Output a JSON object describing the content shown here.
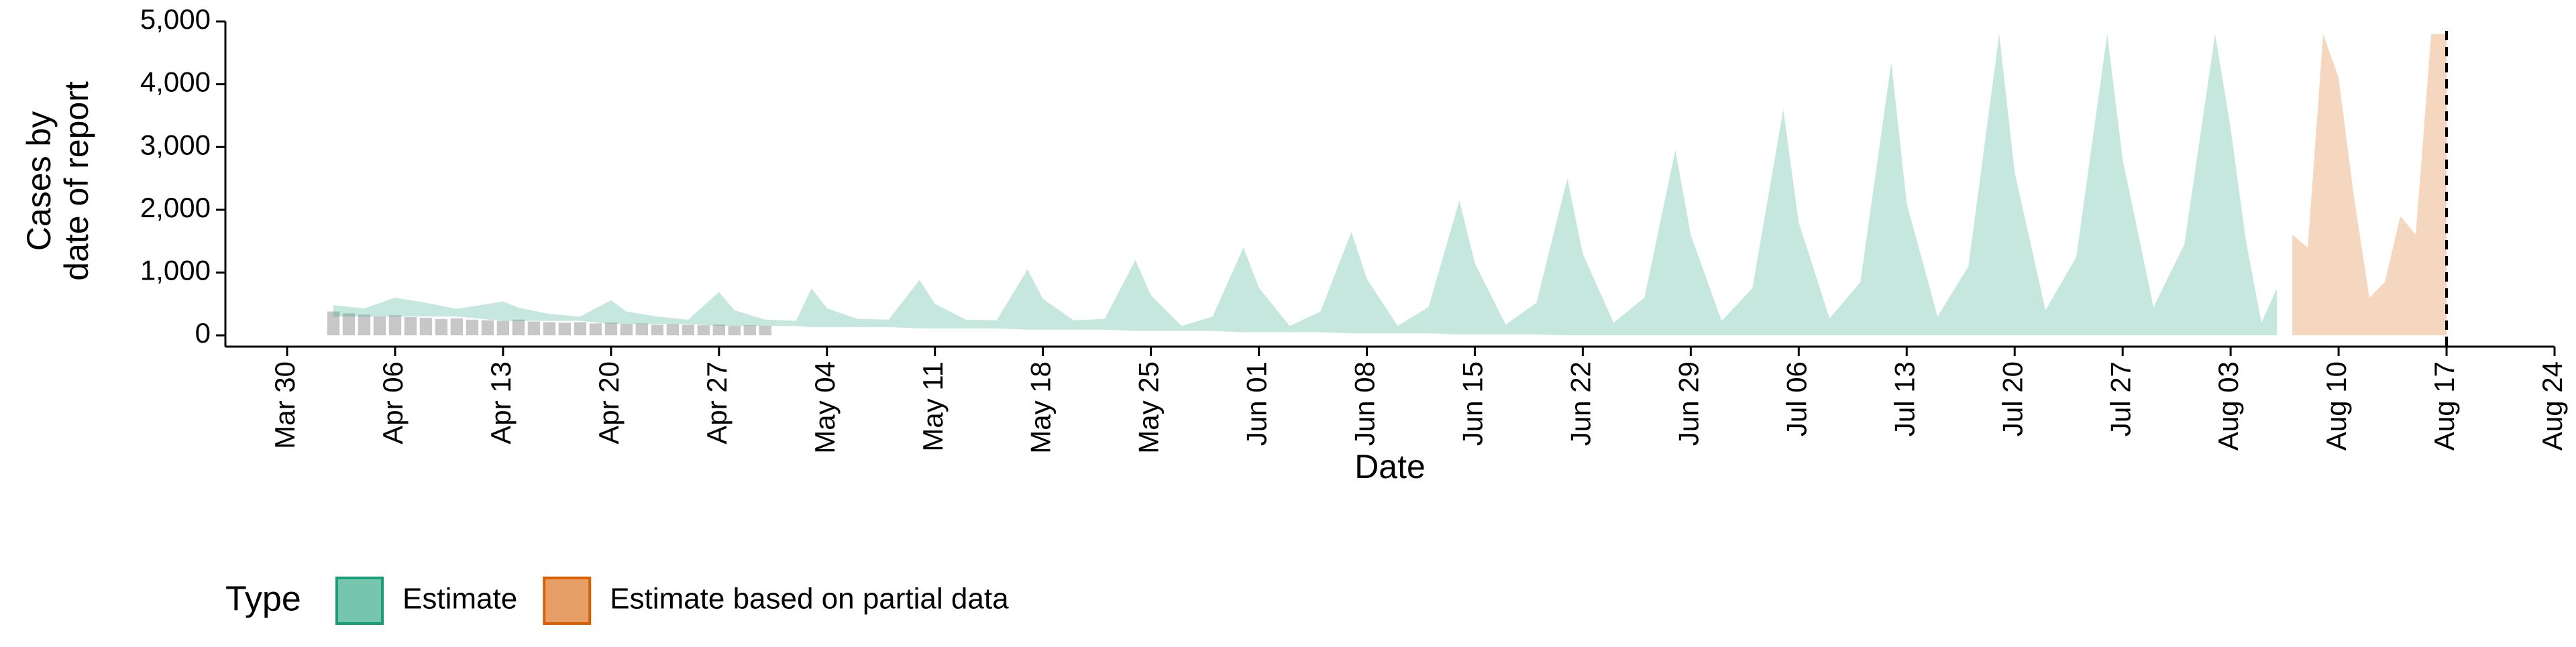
{
  "chart_data": {
    "type": "area",
    "x_label": "Date",
    "y_label": [
      "Cases by",
      "date of report"
    ],
    "legend_title": "Type",
    "legend": "bottom",
    "xlim": [
      "Mar 26",
      "Aug 24"
    ],
    "xticks": [
      "Mar 30",
      "Apr 06",
      "Apr 13",
      "Apr 20",
      "Apr 27",
      "May 04",
      "May 11",
      "May 18",
      "May 25",
      "Jun 01",
      "Jun 08",
      "Jun 15",
      "Jun 22",
      "Jun 29",
      "Jul 06",
      "Jul 13",
      "Jul 20",
      "Jul 27",
      "Aug 03",
      "Aug 10",
      "Aug 17",
      "Aug 24"
    ],
    "ylim": [
      -180,
      5000
    ],
    "yticks": [
      0,
      {
        "value": 1000,
        "label": "1,000"
      },
      {
        "value": 2000,
        "label": "2,000"
      },
      {
        "value": 3000,
        "label": "3,000"
      },
      {
        "value": 4000,
        "label": "4,000"
      },
      {
        "value": 5000,
        "label": "5,000"
      }
    ],
    "vline": "Aug 17",
    "bars": {
      "color": "#bdbdbd",
      "x": [
        "Apr 02",
        "Apr 03",
        "Apr 04",
        "Apr 05",
        "Apr 06",
        "Apr 07",
        "Apr 08",
        "Apr 09",
        "Apr 10",
        "Apr 11",
        "Apr 12",
        "Apr 13",
        "Apr 14",
        "Apr 15",
        "Apr 16",
        "Apr 17",
        "Apr 18",
        "Apr 19",
        "Apr 20",
        "Apr 21",
        "Apr 22",
        "Apr 23",
        "Apr 24",
        "Apr 25",
        "Apr 26",
        "Apr 27",
        "Apr 28",
        "Apr 29",
        "Apr 30"
      ],
      "values": [
        380,
        350,
        330,
        300,
        320,
        290,
        280,
        260,
        270,
        250,
        240,
        230,
        250,
        220,
        210,
        200,
        210,
        190,
        200,
        180,
        190,
        170,
        180,
        170,
        160,
        170,
        150,
        160,
        150
      ]
    },
    "series": [
      {
        "name": "Estimate",
        "color": "#1b9e77",
        "x": [
          "Apr 02",
          "Apr 04",
          "Apr 06",
          "Apr 08",
          "Apr 10",
          "Apr 13",
          "Apr 14",
          "Apr 16",
          "Apr 18",
          "Apr 20",
          "Apr 21",
          "Apr 23",
          "Apr 25",
          "Apr 27",
          "Apr 28",
          "Apr 30",
          "May 02",
          "May 03",
          "May 04",
          "May 06",
          "May 08",
          "May 10",
          "May 11",
          "May 13",
          "May 15",
          "May 17",
          "May 18",
          "May 20",
          "May 22",
          "May 24",
          "May 25",
          "May 27",
          "May 29",
          "May 31",
          "Jun 01",
          "Jun 03",
          "Jun 05",
          "Jun 07",
          "Jun 08",
          "Jun 10",
          "Jun 12",
          "Jun 14",
          "Jun 15",
          "Jun 17",
          "Jun 19",
          "Jun 21",
          "Jun 22",
          "Jun 24",
          "Jun 26",
          "Jun 28",
          "Jun 29",
          "Jul 01",
          "Jul 03",
          "Jul 05",
          "Jul 06",
          "Jul 08",
          "Jul 10",
          "Jul 12",
          "Jul 13",
          "Jul 15",
          "Jul 17",
          "Jul 19",
          "Jul 20",
          "Jul 22",
          "Jul 24",
          "Jul 26",
          "Jul 27",
          "Jul 29",
          "Jul 31",
          "Aug 02",
          "Aug 03",
          "Aug 04",
          "Aug 05",
          "Aug 06"
        ],
        "values": [
          480,
          430,
          600,
          520,
          420,
          540,
          440,
          340,
          300,
          560,
          380,
          300,
          250,
          690,
          400,
          250,
          230,
          750,
          430,
          260,
          250,
          880,
          500,
          250,
          240,
          1050,
          580,
          240,
          260,
          1200,
          640,
          150,
          300,
          1400,
          760,
          150,
          380,
          1650,
          900,
          150,
          450,
          2150,
          1150,
          170,
          520,
          2500,
          1300,
          200,
          600,
          2950,
          1600,
          230,
          750,
          3600,
          1800,
          270,
          850,
          4350,
          2100,
          300,
          1100,
          4800,
          2600,
          400,
          1250,
          4800,
          2800,
          450,
          1450,
          4800,
          3300,
          1500,
          200,
          750
        ],
        "lower": [
          300,
          300,
          300,
          300,
          300,
          230,
          230,
          230,
          230,
          180,
          180,
          180,
          180,
          150,
          150,
          150,
          150,
          130,
          130,
          130,
          130,
          110,
          110,
          110,
          110,
          90,
          90,
          90,
          90,
          70,
          70,
          70,
          70,
          50,
          50,
          50,
          50,
          30,
          30,
          30,
          30,
          15,
          15,
          15,
          15,
          0,
          0,
          0,
          0,
          0,
          0,
          0,
          0,
          0,
          0,
          0,
          0,
          0,
          0,
          0,
          0,
          0,
          0,
          0,
          0,
          0,
          0,
          0,
          0,
          0,
          0,
          0,
          0,
          0
        ]
      },
      {
        "name": "Estimate based on partial data",
        "color": "#d95f02",
        "x": [
          "Aug 07",
          "Aug 08",
          "Aug 09",
          "Aug 10",
          "Aug 11",
          "Aug 12",
          "Aug 13",
          "Aug 14",
          "Aug 15",
          "Aug 16",
          "Aug 17"
        ],
        "values": [
          1600,
          1400,
          4800,
          4100,
          2200,
          600,
          850,
          1900,
          1600,
          4800,
          4800
        ],
        "lower": [
          0,
          0,
          0,
          0,
          0,
          0,
          0,
          0,
          0,
          0,
          0
        ]
      }
    ]
  }
}
